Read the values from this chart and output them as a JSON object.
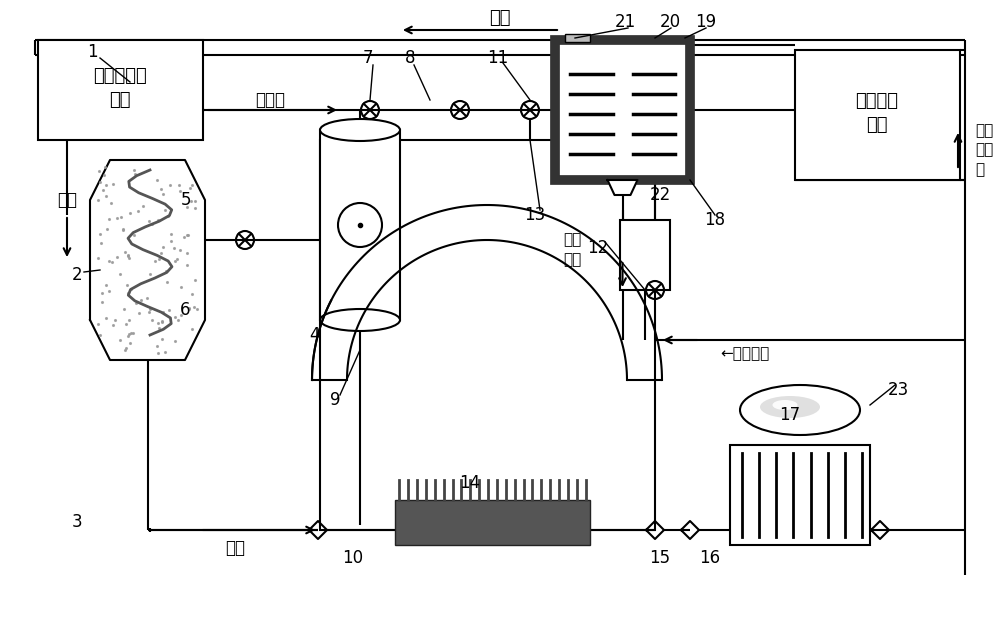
{
  "bg_color": "#ffffff",
  "lc": "#000000",
  "gc": "#888888",
  "dg": "#444444",
  "lg": "#cccccc",
  "box1_text": "生物炭制备\n单元",
  "box_right_text": "固液分离\n单元",
  "label_zhaocha": "沼渣",
  "label_shengwutan": "生物炭",
  "label_yure": "余热",
  "label_zhaoqi": "沼气",
  "label_fuhe_jieti": "复合\n介体",
  "label_huishou_jieti": "←回收介体",
  "label_fajiao_shengyu": "发酵\n剩余\n物"
}
